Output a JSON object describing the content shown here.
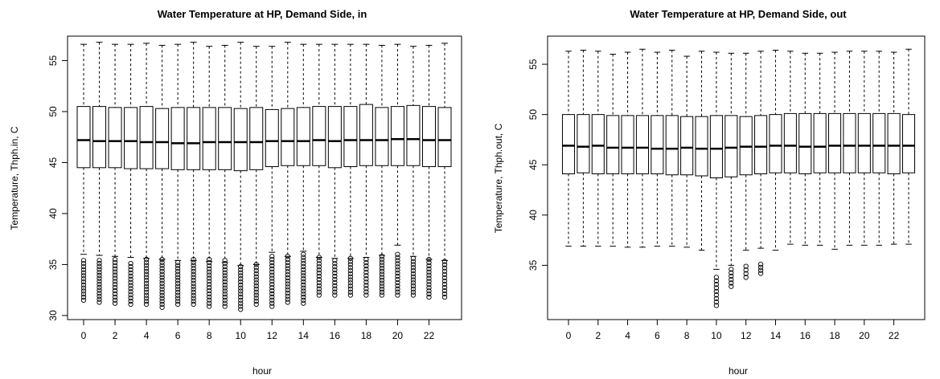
{
  "chart_data": [
    {
      "type": "boxplot",
      "title": "Water Temperature at HP, Demand Side, in",
      "xlabel": "hour",
      "ylabel": "Temperature, Thph.in, C",
      "categories": [
        0,
        1,
        2,
        3,
        4,
        5,
        6,
        7,
        8,
        9,
        10,
        11,
        12,
        13,
        14,
        15,
        16,
        17,
        18,
        19,
        20,
        21,
        22,
        23
      ],
      "x_tick_labels": [
        "0",
        "2",
        "4",
        "6",
        "8",
        "10",
        "12",
        "14",
        "16",
        "18",
        "20",
        "22"
      ],
      "y_ticks": [
        30,
        35,
        40,
        45,
        50,
        55
      ],
      "ylim": [
        29.6,
        57.4
      ],
      "grid": false,
      "series": [
        {
          "whisker_low": [
            36.0,
            35.9,
            35.8,
            35.7,
            35.6,
            35.5,
            35.4,
            35.4,
            35.3,
            35.2,
            34.9,
            35.0,
            36.2,
            35.8,
            36.3,
            35.7,
            35.6,
            35.6,
            35.7,
            35.9,
            36.9,
            35.8,
            35.5,
            35.4
          ],
          "q1": [
            44.5,
            44.5,
            44.5,
            44.4,
            44.4,
            44.4,
            44.3,
            44.3,
            44.3,
            44.3,
            44.2,
            44.3,
            44.6,
            44.7,
            44.7,
            44.7,
            44.5,
            44.6,
            44.7,
            44.7,
            44.7,
            44.7,
            44.6,
            44.6
          ],
          "median": [
            47.2,
            47.1,
            47.1,
            47.1,
            47.0,
            47.0,
            46.9,
            46.9,
            47.0,
            47.0,
            47.0,
            47.0,
            47.1,
            47.1,
            47.1,
            47.2,
            47.1,
            47.2,
            47.2,
            47.2,
            47.3,
            47.3,
            47.2,
            47.2
          ],
          "q3": [
            50.5,
            50.5,
            50.4,
            50.4,
            50.5,
            50.3,
            50.4,
            50.4,
            50.4,
            50.4,
            50.3,
            50.4,
            50.2,
            50.3,
            50.4,
            50.5,
            50.5,
            50.5,
            50.7,
            50.4,
            50.5,
            50.6,
            50.5,
            50.4
          ],
          "whisker_high": [
            56.6,
            56.8,
            56.6,
            56.6,
            56.7,
            56.5,
            56.6,
            56.8,
            56.4,
            56.5,
            56.8,
            56.4,
            56.4,
            56.8,
            56.6,
            56.6,
            56.6,
            56.6,
            56.6,
            56.5,
            56.6,
            56.4,
            56.5,
            56.7
          ],
          "outlier_low": [
            31.5,
            31.3,
            31.2,
            31.1,
            31.1,
            30.8,
            31.1,
            31.1,
            30.9,
            30.9,
            30.6,
            31.1,
            30.9,
            31.3,
            31.2,
            32.0,
            32.0,
            32.0,
            32.0,
            32.0,
            32.0,
            32.0,
            31.8,
            31.8
          ],
          "outlier_high": [
            35.4,
            35.4,
            35.5,
            35.1,
            35.5,
            35.5,
            35.2,
            35.5,
            35.5,
            35.4,
            34.8,
            35.0,
            35.8,
            35.8,
            36.0,
            35.7,
            35.4,
            35.6,
            35.5,
            35.8,
            36.0,
            35.6,
            35.5,
            35.3
          ]
        }
      ]
    },
    {
      "type": "boxplot",
      "title": "Water Temperature at HP, Demand Side, out",
      "xlabel": "hour",
      "ylabel": "Temperature, Thph.out, C",
      "categories": [
        0,
        1,
        2,
        3,
        4,
        5,
        6,
        7,
        8,
        9,
        10,
        11,
        12,
        13,
        14,
        15,
        16,
        17,
        18,
        19,
        20,
        21,
        22,
        23
      ],
      "x_tick_labels": [
        "0",
        "2",
        "4",
        "6",
        "8",
        "10",
        "12",
        "14",
        "16",
        "18",
        "20",
        "22"
      ],
      "y_ticks": [
        35,
        40,
        45,
        50,
        55
      ],
      "ylim": [
        29.6,
        57.8
      ],
      "grid": false,
      "series": [
        {
          "whisker_low": [
            36.9,
            36.9,
            36.9,
            36.9,
            36.8,
            36.8,
            36.9,
            36.9,
            36.8,
            36.5,
            34.6,
            35.0,
            36.5,
            36.7,
            36.5,
            37.1,
            37.0,
            37.0,
            36.6,
            37.0,
            37.0,
            37.0,
            37.1,
            37.1
          ],
          "q1": [
            44.1,
            44.2,
            44.1,
            44.1,
            44.1,
            44.1,
            44.1,
            44.0,
            44.0,
            43.9,
            43.7,
            43.8,
            44.0,
            44.1,
            44.2,
            44.2,
            44.1,
            44.2,
            44.2,
            44.2,
            44.2,
            44.2,
            44.1,
            44.2
          ],
          "median": [
            46.9,
            46.8,
            46.9,
            46.7,
            46.7,
            46.7,
            46.6,
            46.6,
            46.7,
            46.6,
            46.6,
            46.7,
            46.8,
            46.8,
            46.9,
            46.9,
            46.8,
            46.8,
            46.9,
            46.9,
            46.9,
            46.9,
            46.9,
            46.9
          ],
          "q3": [
            50.0,
            50.0,
            50.0,
            49.9,
            49.9,
            49.9,
            49.9,
            49.9,
            49.8,
            49.8,
            49.9,
            49.9,
            49.8,
            49.9,
            50.0,
            50.1,
            50.1,
            50.1,
            50.1,
            50.1,
            50.1,
            50.1,
            50.1,
            50.0
          ],
          "whisker_high": [
            56.3,
            56.4,
            56.3,
            56.0,
            56.2,
            56.5,
            56.2,
            56.4,
            55.8,
            56.3,
            56.2,
            56.1,
            56.1,
            56.3,
            56.4,
            56.3,
            56.1,
            56.1,
            56.2,
            56.3,
            56.3,
            56.3,
            56.2,
            56.5
          ],
          "outlier_low": [
            null,
            null,
            null,
            null,
            null,
            null,
            null,
            null,
            null,
            null,
            31.0,
            32.9,
            33.8,
            34.2,
            null,
            null,
            null,
            null,
            null,
            null,
            null,
            null,
            null,
            null
          ],
          "outlier_high": [
            null,
            null,
            null,
            null,
            null,
            null,
            null,
            null,
            null,
            null,
            33.8,
            34.6,
            34.9,
            35.1,
            null,
            null,
            null,
            null,
            null,
            null,
            null,
            null,
            null,
            null
          ]
        }
      ]
    }
  ]
}
